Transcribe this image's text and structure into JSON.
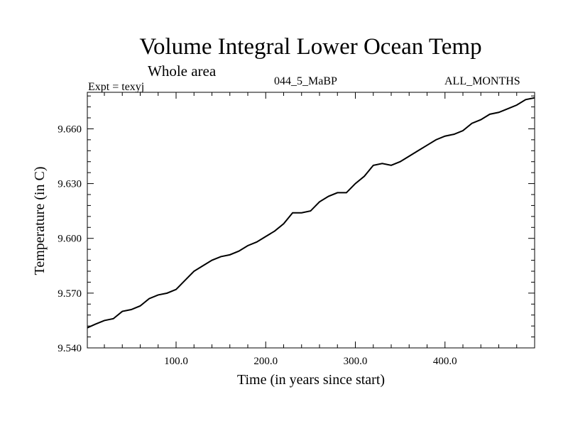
{
  "chart_data": {
    "type": "line",
    "title": "Volume Integral Lower Ocean Temp",
    "subtitle": "Whole area",
    "experiment_label": "Expt = texyj",
    "center_label": "044_5_MaBP",
    "months_label": "ALL_MONTHS",
    "xlabel": "Time (in years since start)",
    "ylabel": "Temperature (in C)",
    "xlim": [
      1,
      500
    ],
    "ylim": [
      9.54,
      9.68
    ],
    "xticks": [
      100,
      200,
      300,
      400
    ],
    "xtick_labels": [
      "100.0",
      "200.0",
      "300.0",
      "400.0"
    ],
    "yticks": [
      9.54,
      9.57,
      9.6,
      9.63,
      9.66
    ],
    "ytick_labels": [
      "9.540",
      "9.570",
      "9.600",
      "9.630",
      "9.660"
    ],
    "grid": false,
    "series": [
      {
        "color": "#000000",
        "x": [
          1,
          10,
          20,
          30,
          40,
          50,
          60,
          70,
          80,
          90,
          100,
          110,
          120,
          130,
          140,
          150,
          160,
          170,
          180,
          190,
          200,
          210,
          220,
          230,
          240,
          250,
          260,
          270,
          280,
          290,
          300,
          310,
          320,
          330,
          340,
          350,
          360,
          370,
          380,
          390,
          400,
          410,
          420,
          430,
          440,
          450,
          460,
          470,
          480,
          490,
          500
        ],
        "y": [
          9.551,
          9.553,
          9.555,
          9.556,
          9.56,
          9.561,
          9.563,
          9.567,
          9.569,
          9.57,
          9.572,
          9.577,
          9.582,
          9.585,
          9.588,
          9.59,
          9.591,
          9.593,
          9.596,
          9.598,
          9.601,
          9.604,
          9.608,
          9.614,
          9.614,
          9.615,
          9.62,
          9.623,
          9.625,
          9.625,
          9.63,
          9.634,
          9.64,
          9.641,
          9.64,
          9.642,
          9.645,
          9.648,
          9.651,
          9.654,
          9.656,
          9.657,
          9.659,
          9.663,
          9.665,
          9.668,
          9.669,
          9.671,
          9.673,
          9.676,
          9.677
        ]
      }
    ]
  }
}
